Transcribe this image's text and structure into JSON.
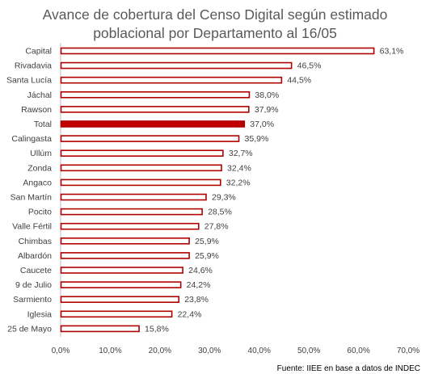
{
  "chart_data": {
    "type": "bar",
    "orientation": "horizontal",
    "title_lines": [
      "Avance de cobertura del Censo Digital según estimado",
      "poblacional por Departamento al 16/05"
    ],
    "categories": [
      "Capital",
      "Rivadavia",
      "Santa Lucía",
      "Jáchal",
      "Rawson",
      "Total",
      "Calingasta",
      "Ullúm",
      "Zonda",
      "Angaco",
      "San Martín",
      "Pocito",
      "Valle Fértil",
      "Chimbas",
      "Albardón",
      "Caucete",
      "9 de Julio",
      "Sarmiento",
      "Iglesia",
      "25 de Mayo"
    ],
    "values": [
      63.1,
      46.5,
      44.5,
      38.0,
      37.9,
      37.0,
      35.9,
      32.7,
      32.4,
      32.2,
      29.3,
      28.5,
      27.8,
      25.9,
      25.9,
      24.6,
      24.2,
      23.8,
      22.4,
      15.8
    ],
    "value_labels": [
      "63,1%",
      "46,5%",
      "44,5%",
      "38,0%",
      "37,9%",
      "37,0%",
      "35,9%",
      "32,7%",
      "32,4%",
      "32,2%",
      "29,3%",
      "28,5%",
      "27,8%",
      "25,9%",
      "25,9%",
      "24,6%",
      "24,2%",
      "23,8%",
      "22,4%",
      "15,8%"
    ],
    "highlight": "Total",
    "xlim": [
      0,
      70
    ],
    "x_ticks": [
      0,
      10,
      20,
      30,
      40,
      50,
      60,
      70
    ],
    "x_tick_labels": [
      "0,0%",
      "10,0%",
      "20,0%",
      "30,0%",
      "40,0%",
      "50,0%",
      "60,0%",
      "70,0%"
    ],
    "grid": false,
    "legend": "none",
    "source": "Fuente:  IIEE en base a datos de INDEC"
  },
  "colors": {
    "bar_outline": "#b00000",
    "bar_fill": "#ffffff",
    "highlight_fill": "#c00000",
    "axis": "#bfbfbf"
  }
}
